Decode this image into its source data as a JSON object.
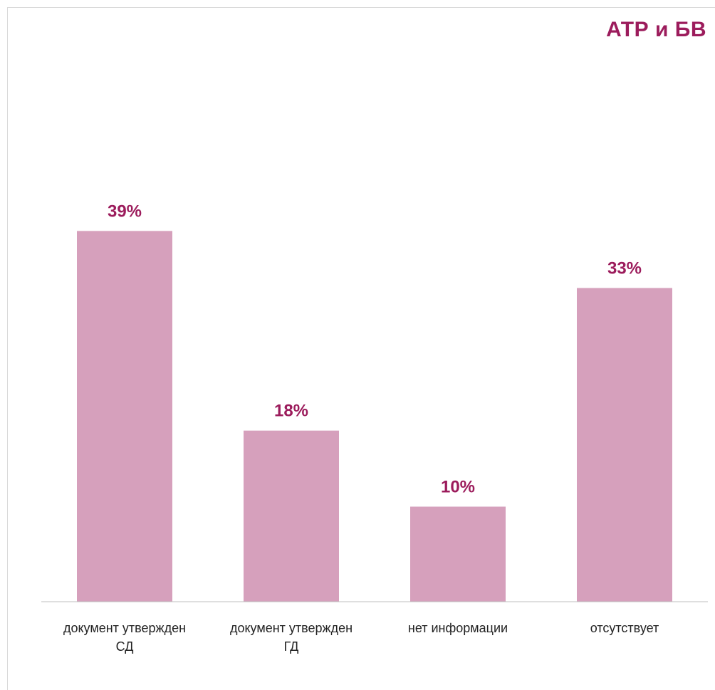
{
  "chart_data": {
    "type": "bar",
    "title": "АТР и БВ",
    "categories": [
      [
        "документ утвержден",
        "СД"
      ],
      [
        "документ утвержден",
        "ГД"
      ],
      [
        "нет информации"
      ],
      [
        "отсутствует"
      ]
    ],
    "values": [
      39,
      18,
      10,
      33
    ],
    "data_labels": [
      "39%",
      "18%",
      "10%",
      "33%"
    ],
    "unit": "%",
    "ylim": [
      0,
      60
    ],
    "grid": false,
    "legend": "none",
    "colors": {
      "bar": "#d6a0bc",
      "label": "#9c1c5c",
      "axis": "#bfbfbf"
    }
  }
}
